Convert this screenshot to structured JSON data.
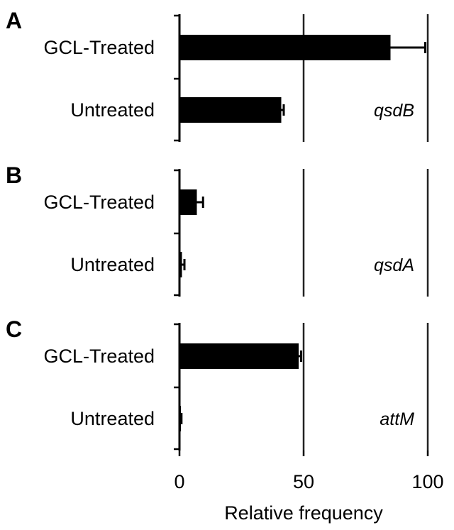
{
  "chart_data": {
    "type": "bar",
    "orientation": "horizontal",
    "xlabel": "Relative frequency",
    "xlim": [
      0,
      100
    ],
    "xticks": [
      "0",
      "50",
      "100"
    ],
    "categories": [
      "GCL-Treated",
      "Untreated"
    ],
    "panels": [
      {
        "letter": "A",
        "gene": "qsdB",
        "values": [
          85,
          41
        ],
        "errors": [
          14,
          1
        ]
      },
      {
        "letter": "B",
        "gene": "qsdA",
        "values": [
          7,
          1
        ],
        "errors": [
          2.5,
          1
        ]
      },
      {
        "letter": "C",
        "gene": "attM",
        "values": [
          48,
          0.5
        ],
        "errors": [
          1,
          0.3
        ]
      }
    ]
  }
}
